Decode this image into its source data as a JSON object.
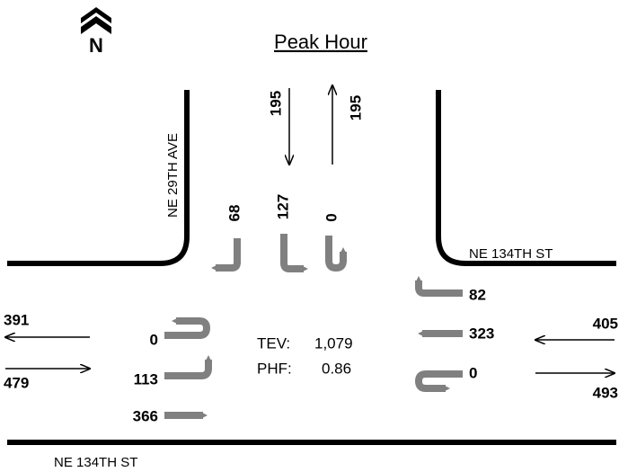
{
  "north": "N",
  "title": "Peak Hour",
  "streets": {
    "north_south": "NE 29TH AVE",
    "east_leg": "NE 134TH ST",
    "south_edge": "NE 134TH ST"
  },
  "approach_totals": {
    "north_in": 195,
    "north_out": 195,
    "west_out": 391,
    "west_in": 479,
    "east_in": 405,
    "east_out": 493
  },
  "southbound": {
    "right": 68,
    "left": 127,
    "u_turn": 0
  },
  "eastbound": {
    "u_turn": 0,
    "left": 113,
    "through": 366
  },
  "westbound": {
    "right": 82,
    "through": 323,
    "u_turn": 0
  },
  "summary": {
    "tev_label": "TEV:",
    "tev": "1,079",
    "phf_label": "PHF:",
    "phf": 0.86
  }
}
